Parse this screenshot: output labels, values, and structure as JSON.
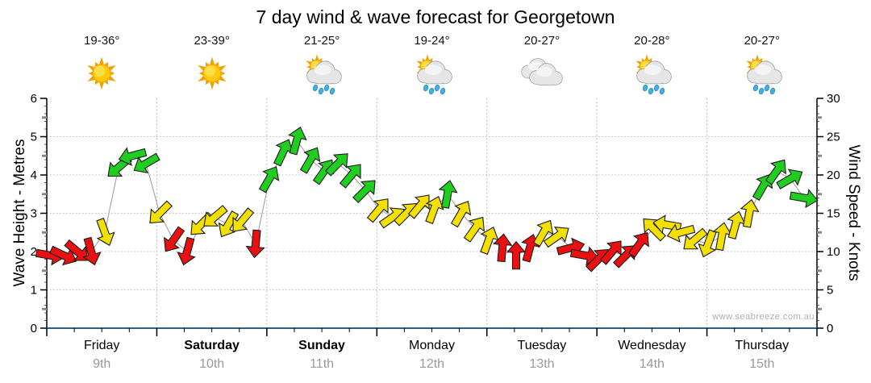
{
  "title": "7 day wind & wave forecast for Georgetown",
  "watermark": "www.seabreeze.com.au",
  "days": [
    {
      "name": "Friday",
      "date": "9th",
      "temp": "19-36°",
      "icon": "sunny",
      "bold": false
    },
    {
      "name": "Saturday",
      "date": "10th",
      "temp": "23-39°",
      "icon": "sunny",
      "bold": true
    },
    {
      "name": "Sunday",
      "date": "11th",
      "temp": "21-25°",
      "icon": "showers",
      "bold": true
    },
    {
      "name": "Monday",
      "date": "12th",
      "temp": "19-24°",
      "icon": "showers",
      "bold": false
    },
    {
      "name": "Tuesday",
      "date": "13th",
      "temp": "20-27°",
      "icon": "cloudy",
      "bold": false
    },
    {
      "name": "Wednesday",
      "date": "14th",
      "temp": "20-28°",
      "icon": "showers",
      "bold": false
    },
    {
      "name": "Thursday",
      "date": "15th",
      "temp": "20-27°",
      "icon": "showers",
      "bold": false
    }
  ],
  "chart_data": {
    "type": "line",
    "subtype": "wind-direction-arrow-series",
    "title": "7 day wind & wave forecast for Georgetown",
    "left_axis": {
      "label": "Wave Height - Metres",
      "min": 0,
      "max": 6,
      "ticks": [
        0,
        1,
        2,
        3,
        4,
        5,
        6
      ]
    },
    "right_axis": {
      "label": "Wind Speed - Knots",
      "min": 0,
      "max": 30,
      "ticks": [
        0,
        5,
        10,
        15,
        20,
        25,
        30
      ]
    },
    "x_categories": [
      "Friday 9th",
      "Saturday 10th",
      "Sunday 11th",
      "Monday 12th",
      "Tuesday 13th",
      "Wednesday 14th",
      "Thursday 15th"
    ],
    "grid": "dotted, horizontal each metre, vertical each day boundary",
    "points_note": "8 samples per day; knots = wind speed on right axis; dir = arrow heading in degrees clockwise from up; color = wind-strength class",
    "points": [
      {
        "knots": 9.5,
        "dir": 100,
        "color": "red"
      },
      {
        "knots": 9.5,
        "dir": 115,
        "color": "red"
      },
      {
        "knots": 10,
        "dir": 130,
        "color": "red"
      },
      {
        "knots": 10,
        "dir": 165,
        "color": "red"
      },
      {
        "knots": 12.5,
        "dir": 160,
        "color": "yellow"
      },
      {
        "knots": 21,
        "dir": 230,
        "color": "green"
      },
      {
        "knots": 22.5,
        "dir": 255,
        "color": "green"
      },
      {
        "knots": 21.5,
        "dir": 240,
        "color": "green"
      },
      {
        "knots": 15,
        "dir": 225,
        "color": "yellow"
      },
      {
        "knots": 11.5,
        "dir": 215,
        "color": "red"
      },
      {
        "knots": 10,
        "dir": 195,
        "color": "red"
      },
      {
        "knots": 13.5,
        "dir": 225,
        "color": "yellow"
      },
      {
        "knots": 14.5,
        "dir": 230,
        "color": "yellow"
      },
      {
        "knots": 13.5,
        "dir": 210,
        "color": "yellow"
      },
      {
        "knots": 14,
        "dir": 220,
        "color": "yellow"
      },
      {
        "knots": 11,
        "dir": 185,
        "color": "red"
      },
      {
        "knots": 19.5,
        "dir": 30,
        "color": "green"
      },
      {
        "knots": 23,
        "dir": 25,
        "color": "green"
      },
      {
        "knots": 24.5,
        "dir": 15,
        "color": "green"
      },
      {
        "knots": 22,
        "dir": 30,
        "color": "green"
      },
      {
        "knots": 20.5,
        "dir": 35,
        "color": "green"
      },
      {
        "knots": 21.5,
        "dir": 45,
        "color": "green"
      },
      {
        "knots": 20,
        "dir": 40,
        "color": "green"
      },
      {
        "knots": 18,
        "dir": 45,
        "color": "green"
      },
      {
        "knots": 15.5,
        "dir": 40,
        "color": "yellow"
      },
      {
        "knots": 14.5,
        "dir": 55,
        "color": "yellow"
      },
      {
        "knots": 15,
        "dir": 45,
        "color": "yellow"
      },
      {
        "knots": 16,
        "dir": 40,
        "color": "yellow"
      },
      {
        "knots": 15.5,
        "dir": 20,
        "color": "yellow"
      },
      {
        "knots": 17.5,
        "dir": 10,
        "color": "green"
      },
      {
        "knots": 15,
        "dir": 30,
        "color": "yellow"
      },
      {
        "knots": 13,
        "dir": 35,
        "color": "yellow"
      },
      {
        "knots": 11.5,
        "dir": 20,
        "color": "yellow"
      },
      {
        "knots": 10.5,
        "dir": 5,
        "color": "red"
      },
      {
        "knots": 9.5,
        "dir": 0,
        "color": "red"
      },
      {
        "knots": 10.5,
        "dir": 15,
        "color": "red"
      },
      {
        "knots": 12.5,
        "dir": 30,
        "color": "yellow"
      },
      {
        "knots": 12,
        "dir": 55,
        "color": "yellow"
      },
      {
        "knots": 10.5,
        "dir": 75,
        "color": "red"
      },
      {
        "knots": 9.5,
        "dir": 100,
        "color": "red"
      },
      {
        "knots": 9,
        "dir": 45,
        "color": "red"
      },
      {
        "knots": 10,
        "dir": 40,
        "color": "red"
      },
      {
        "knots": 9.5,
        "dir": 45,
        "color": "red"
      },
      {
        "knots": 11,
        "dir": 35,
        "color": "red"
      },
      {
        "knots": 13,
        "dir": 315,
        "color": "yellow"
      },
      {
        "knots": 13.5,
        "dir": 280,
        "color": "yellow"
      },
      {
        "knots": 12.5,
        "dir": 255,
        "color": "yellow"
      },
      {
        "knots": 11.5,
        "dir": 230,
        "color": "yellow"
      },
      {
        "knots": 11,
        "dir": 200,
        "color": "yellow"
      },
      {
        "knots": 12,
        "dir": 10,
        "color": "yellow"
      },
      {
        "knots": 13.5,
        "dir": 15,
        "color": "yellow"
      },
      {
        "knots": 15,
        "dir": 10,
        "color": "yellow"
      },
      {
        "knots": 18.5,
        "dir": 30,
        "color": "green"
      },
      {
        "knots": 20.5,
        "dir": 35,
        "color": "green"
      },
      {
        "knots": 19.5,
        "dir": 60,
        "color": "green"
      },
      {
        "knots": 17,
        "dir": 100,
        "color": "green"
      }
    ],
    "colors": {
      "red": "#e81010",
      "yellow": "#f3df00",
      "green": "#1fce1f",
      "axis_x_line": "#2e5f8a",
      "grid": "#bbbbbb",
      "connector": "#999999",
      "date_text": "#9a9a9a"
    }
  }
}
